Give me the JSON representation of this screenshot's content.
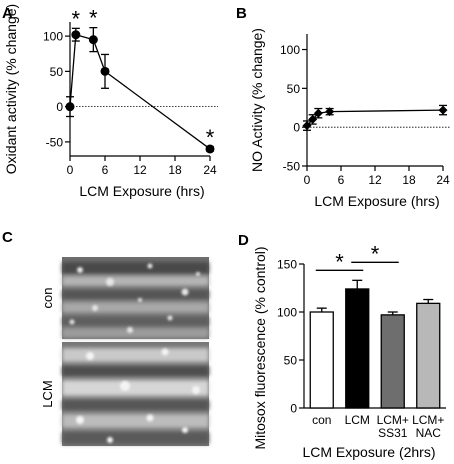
{
  "panels": {
    "A": {
      "letter": "A"
    },
    "B": {
      "letter": "B"
    },
    "C": {
      "letter": "C",
      "labels": [
        "con",
        "LCM"
      ]
    },
    "D": {
      "letter": "D"
    }
  },
  "chart_data": [
    {
      "panel": "A",
      "type": "line",
      "xlabel": "LCM Exposure (hrs)",
      "ylabel": "Oxidant activity (% change)",
      "xlim": [
        0,
        24
      ],
      "ylim": [
        -70,
        120
      ],
      "xticks": [
        0,
        6,
        12,
        18,
        24
      ],
      "yticks": [
        -50,
        0,
        50,
        100
      ],
      "baseline": 0,
      "marker": "circle",
      "series": [
        {
          "x": [
            0,
            1,
            4,
            6,
            24
          ],
          "y": [
            0,
            102,
            95,
            50,
            -60
          ],
          "err": [
            14,
            9,
            17,
            24,
            3
          ],
          "sig": [
            "",
            "*",
            "*",
            "",
            "*"
          ]
        }
      ]
    },
    {
      "panel": "B",
      "type": "line",
      "xlabel": "LCM Exposure (hrs)",
      "ylabel": "NO Activity (% change)",
      "xlim": [
        0,
        24
      ],
      "ylim": [
        -50,
        120
      ],
      "xticks": [
        0,
        6,
        12,
        18,
        24
      ],
      "yticks": [
        -50,
        0,
        50,
        100
      ],
      "baseline": 0,
      "marker": "diamond",
      "series": [
        {
          "x": [
            0,
            1,
            2,
            4,
            24
          ],
          "y": [
            2,
            10,
            18,
            20,
            22
          ],
          "err": [
            6,
            6,
            6,
            4,
            6
          ]
        }
      ]
    },
    {
      "panel": "D",
      "type": "bar",
      "xlabel": "LCM Exposure (2hrs)",
      "ylabel": "Mitosox fluorescence (% control)",
      "ylim": [
        0,
        150
      ],
      "yticks": [
        0,
        50,
        100,
        150
      ],
      "categories": [
        "con",
        "LCM",
        "LCM+ SS31",
        "LCM+ NAC"
      ],
      "values": [
        100,
        124,
        97,
        109
      ],
      "err": [
        4,
        9,
        3,
        4
      ],
      "colors": [
        "#ffffff",
        "#000000",
        "#6e6e6e",
        "#b8b8b8"
      ],
      "brackets": [
        {
          "from": 0,
          "to": 1,
          "label": "*"
        },
        {
          "from": 1,
          "to": 2,
          "label": "*"
        }
      ]
    }
  ]
}
